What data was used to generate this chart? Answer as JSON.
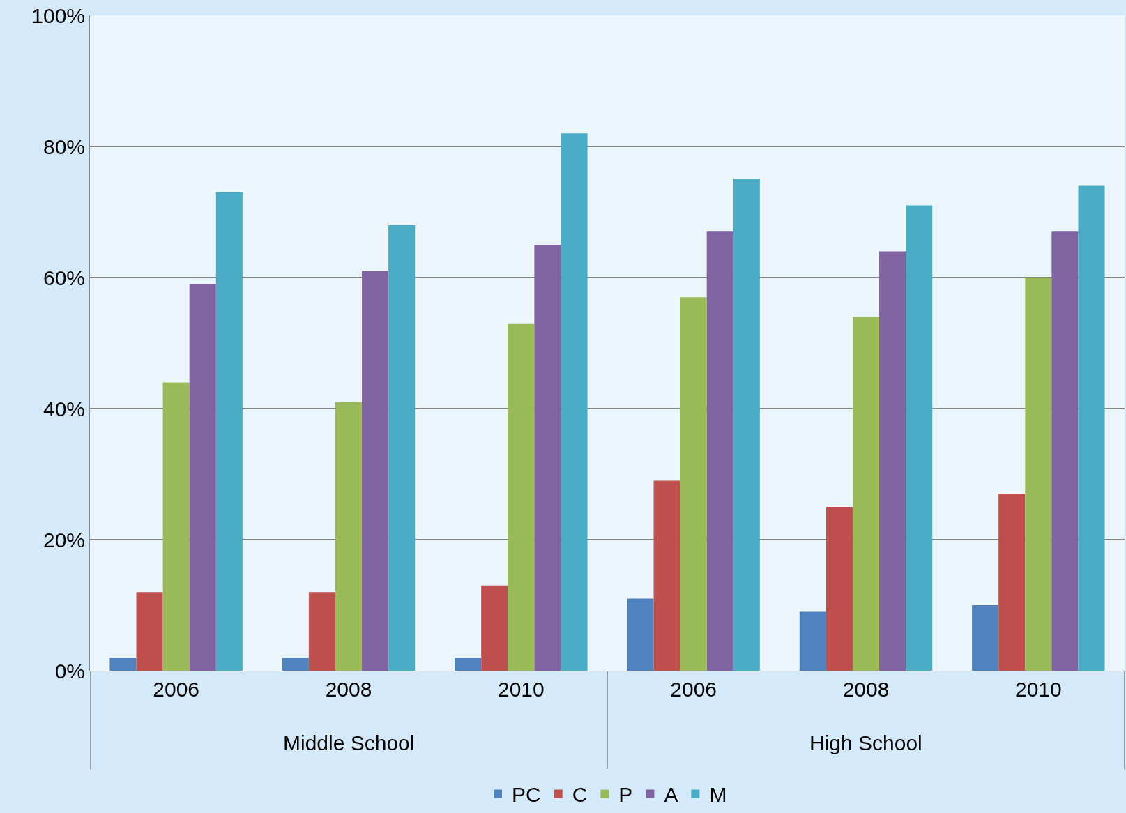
{
  "chart_data": {
    "type": "bar",
    "categories": [
      "2006",
      "2008",
      "2010",
      "2006",
      "2008",
      "2010"
    ],
    "series": [
      {
        "name": "PC",
        "color": "#4f81bd",
        "values": [
          2,
          2,
          2,
          11,
          9,
          10
        ]
      },
      {
        "name": "C",
        "color": "#c0504d",
        "values": [
          12,
          12,
          13,
          29,
          25,
          27
        ]
      },
      {
        "name": "P",
        "color": "#9bbb59",
        "values": [
          44,
          41,
          53,
          57,
          54,
          60
        ]
      },
      {
        "name": "A",
        "color": "#8064a2",
        "values": [
          59,
          61,
          65,
          67,
          64,
          67
        ]
      },
      {
        "name": "M",
        "color": "#4bacc6",
        "values": [
          73,
          68,
          82,
          75,
          71,
          74
        ]
      }
    ],
    "annotations": [
      "Middle School",
      "High School"
    ],
    "ylim": [
      0,
      100
    ],
    "yticks": [
      {
        "value": 0,
        "label": "0%"
      },
      {
        "value": 20,
        "label": "20%"
      },
      {
        "value": 40,
        "label": "40%"
      },
      {
        "value": 60,
        "label": "60%"
      },
      {
        "value": 80,
        "label": "80%"
      },
      {
        "value": 100,
        "label": "100%"
      }
    ],
    "grid": "y",
    "legend": "bottom"
  }
}
